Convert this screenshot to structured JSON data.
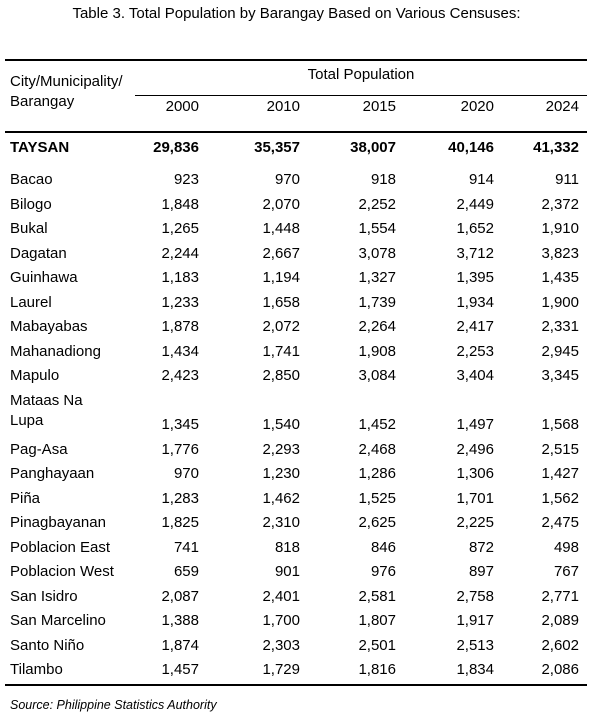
{
  "title": "Table 3. Total Population by Barangay Based on Various Censuses:",
  "table": {
    "header": {
      "first": "City/Municipality/\nBarangay",
      "group": "Total Population",
      "years": [
        "2000",
        "2010",
        "2015",
        "2020",
        "2024"
      ]
    },
    "rows": [
      [
        "TAYSAN",
        "29,836",
        "35,357",
        "38,007",
        "40,146",
        "41,332"
      ],
      [
        "Bacao",
        "923",
        "970",
        "918",
        "914",
        "911"
      ],
      [
        "Bilogo",
        "1,848",
        "2,070",
        "2,252",
        "2,449",
        "2,372"
      ],
      [
        "Bukal",
        "1,265",
        "1,448",
        "1,554",
        "1,652",
        "1,910"
      ],
      [
        "Dagatan",
        "2,244",
        "2,667",
        "3,078",
        "3,712",
        "3,823"
      ],
      [
        "Guinhawa",
        "1,183",
        "1,194",
        "1,327",
        "1,395",
        "1,435"
      ],
      [
        "Laurel",
        "1,233",
        "1,658",
        "1,739",
        "1,934",
        "1,900"
      ],
      [
        "Mabayabas",
        "1,878",
        "2,072",
        "2,264",
        "2,417",
        "2,331"
      ],
      [
        "Mahanadiong",
        "1,434",
        "1,741",
        "1,908",
        "2,253",
        "2,945"
      ],
      [
        "Mapulo",
        "2,423",
        "2,850",
        "3,084",
        "3,404",
        "3,345"
      ],
      [
        "Mataas Na\nLupa",
        "1,345",
        "1,540",
        "1,452",
        "1,497",
        "1,568"
      ],
      [
        "Pag-Asa",
        "1,776",
        "2,293",
        "2,468",
        "2,496",
        "2,515"
      ],
      [
        "Panghayaan",
        "970",
        "1,230",
        "1,286",
        "1,306",
        "1,427"
      ],
      [
        "Piña",
        "1,283",
        "1,462",
        "1,525",
        "1,701",
        "1,562"
      ],
      [
        "Pinagbayanan",
        "1,825",
        "2,310",
        "2,625",
        "2,225",
        "2,475"
      ],
      [
        "Poblacion East",
        "741",
        "818",
        "846",
        "872",
        "498"
      ],
      [
        "Poblacion West",
        "659",
        "901",
        "976",
        "897",
        "767"
      ],
      [
        "San Isidro",
        "2,087",
        "2,401",
        "2,581",
        "2,758",
        "2,771"
      ],
      [
        "San Marcelino",
        "1,388",
        "1,700",
        "1,807",
        "1,917",
        "2,089"
      ],
      [
        "Santo Niño",
        "1,874",
        "2,303",
        "2,501",
        "2,513",
        "2,602"
      ],
      [
        "Tilambo",
        "1,457",
        "1,729",
        "1,816",
        "1,834",
        "2,086"
      ]
    ]
  },
  "source": "Source: Philippine Statistics Authority"
}
